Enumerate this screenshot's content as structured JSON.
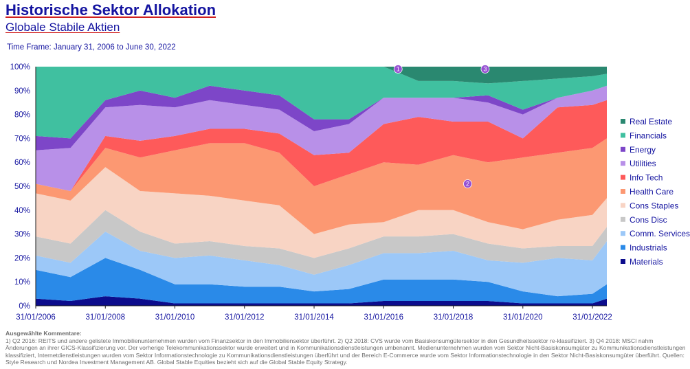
{
  "title": "Historische Sektor Allokation",
  "subtitle": "Globale Stabile Aktien",
  "timeframe": "Time Frame: January 31, 2006 to June 30, 2022",
  "comments": {
    "heading": "Ausgewählte Kommentare:",
    "text": "1) Q2 2016: REITS und andere gelistete Immobilienunternehmen wurden vom Finanzsektor in den Immobiliensektor überführt. 2) Q2 2018: CVS wurde vom Basiskonsumgütersektor in den Gesundheitssektor re-klassifiziert. 3) Q4 2018: MSCI nahm Änderungen an ihrer GICS-Klassifizierung vor. Der vorherige Telekommunikationssektor wurde erweitert und in Kommunikationsdienstleistungen umbenannt. Medienunternehmen wurden vom Sektor Nicht-Basiskonsumgüter zu Kommunikationsdienstleistungen klassifiziert, Internetdienstleistungen wurden vom Sektor Informationstechnologie zu Kommunikationsdienstleistungen überführt und der Bereich E-Commerce wurde vom Sektor Informationstechnologie in den Sektor Nicht-Basiskonsumgüter überführt. Quellen: Style Research und Nordea Investment Management AB. Global Stable Equities bezieht sich auf die Global Stable Equity Strategy."
  },
  "chart_data": {
    "type": "area",
    "stacked": true,
    "x": [
      "31/01/2006",
      "31/01/2007",
      "31/01/2008",
      "31/01/2009",
      "31/01/2010",
      "31/01/2011",
      "31/01/2012",
      "31/01/2013",
      "31/01/2014",
      "31/01/2015",
      "31/01/2016",
      "31/01/2017",
      "31/01/2018",
      "31/01/2019",
      "31/01/2020",
      "31/01/2021",
      "31/01/2022",
      "30/06/2022"
    ],
    "x_ticks": [
      "31/01/2006",
      "31/01/2008",
      "31/01/2010",
      "31/01/2012",
      "31/01/2014",
      "31/01/2016",
      "31/01/2018",
      "31/01/2020",
      "31/01/2022"
    ],
    "y_ticks": [
      "0%",
      "10%",
      "20%",
      "30%",
      "40%",
      "50%",
      "60%",
      "70%",
      "80%",
      "90%",
      "100%"
    ],
    "ylim": [
      0,
      100
    ],
    "legend_position": "right",
    "series": [
      {
        "name": "Materials",
        "color": "#0c0c8c",
        "values": [
          3,
          2,
          4,
          3,
          1,
          1,
          1,
          1,
          1,
          1,
          2,
          2,
          2,
          2,
          1,
          1,
          1,
          3
        ]
      },
      {
        "name": "Industrials",
        "color": "#2a8ae8",
        "values": [
          12,
          10,
          16,
          12,
          8,
          8,
          7,
          7,
          5,
          6,
          9,
          9,
          9,
          8,
          5,
          3,
          4,
          6
        ]
      },
      {
        "name": "Comm. Services",
        "color": "#9cc8f8",
        "values": [
          6,
          6,
          11,
          8,
          11,
          12,
          11,
          9,
          7,
          10,
          11,
          11,
          12,
          9,
          12,
          16,
          14,
          18
        ]
      },
      {
        "name": "Cons Disc",
        "color": "#c8c8c8",
        "values": [
          8,
          8,
          9,
          8,
          6,
          6,
          6,
          7,
          7,
          7,
          7,
          7,
          7,
          7,
          6,
          5,
          6,
          6
        ]
      },
      {
        "name": "Cons Staples",
        "color": "#f8d4c4",
        "values": [
          18,
          18,
          18,
          17,
          21,
          19,
          19,
          18,
          10,
          10,
          6,
          11,
          10,
          9,
          8,
          11,
          13,
          12
        ]
      },
      {
        "name": "Health Care",
        "color": "#fc9872",
        "values": [
          4,
          4,
          8,
          14,
          18,
          22,
          24,
          22,
          20,
          21,
          25,
          19,
          23,
          25,
          30,
          28,
          28,
          25
        ]
      },
      {
        "name": "Info Tech",
        "color": "#fe5a5a",
        "values": [
          0,
          0,
          5,
          7,
          6,
          6,
          6,
          8,
          13,
          9,
          16,
          20,
          14,
          17,
          8,
          19,
          18,
          16
        ]
      },
      {
        "name": "Utilities",
        "color": "#b890e8",
        "values": [
          14,
          18,
          12,
          15,
          12,
          12,
          10,
          10,
          10,
          12,
          11,
          8,
          10,
          8,
          10,
          4,
          6,
          6
        ]
      },
      {
        "name": "Energy",
        "color": "#7d46c8",
        "values": [
          6,
          4,
          3,
          6,
          4,
          6,
          6,
          6,
          5,
          2,
          0,
          0,
          0,
          3,
          2,
          0,
          0,
          0
        ]
      },
      {
        "name": "Financials",
        "color": "#40c0a0",
        "values": [
          29,
          30,
          14,
          10,
          13,
          8,
          10,
          12,
          22,
          22,
          13,
          7,
          7,
          5,
          12,
          8,
          6,
          5
        ]
      },
      {
        "name": "Real Estate",
        "color": "#2a8870",
        "values": [
          0,
          0,
          0,
          0,
          0,
          0,
          0,
          0,
          0,
          0,
          0,
          6,
          6,
          7,
          6,
          5,
          4,
          3
        ]
      }
    ],
    "annotations": [
      {
        "label": "1",
        "x": "30/06/2016",
        "y": 99
      },
      {
        "label": "2",
        "x": "30/06/2018",
        "y": 51
      },
      {
        "label": "3",
        "x": "31/12/2018",
        "y": 99
      }
    ]
  }
}
